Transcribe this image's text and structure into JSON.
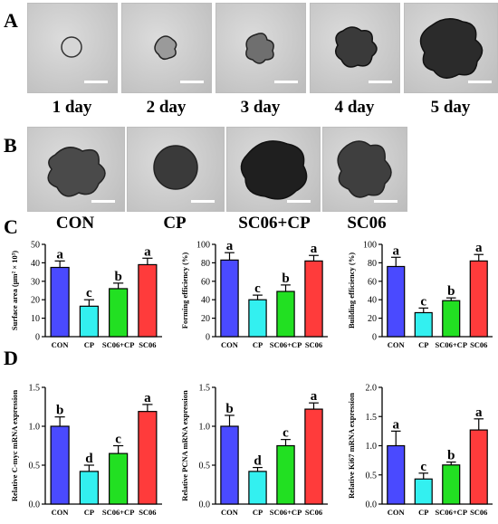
{
  "panels": {
    "A": "A",
    "B": "B",
    "C": "C",
    "D": "D"
  },
  "row_a": {
    "day_labels": [
      "1 day",
      "2 day",
      "3 day",
      "4 day",
      "5 day"
    ]
  },
  "row_b": {
    "group_labels": [
      "CON",
      "CP",
      "SC06+CP",
      "SC06"
    ]
  },
  "colors": {
    "CON": "#4a4aff",
    "CP": "#33f0f0",
    "SC06+CP": "#22e022",
    "SC06": "#ff3b3b"
  },
  "chart_data": [
    {
      "type": "bar",
      "panel": "C",
      "categories": [
        "CON",
        "CP",
        "SC06+CP",
        "SC06"
      ],
      "values": [
        37.5,
        16.5,
        26,
        39
      ],
      "errors": [
        3.5,
        3.5,
        3,
        3.5
      ],
      "letters": [
        "a",
        "c",
        "b",
        "a"
      ],
      "ylabel": "Surface area (μm² × 10³)",
      "ylim": [
        0,
        50
      ],
      "yticks": [
        "0",
        "10",
        "20",
        "30",
        "40",
        "50"
      ]
    },
    {
      "type": "bar",
      "panel": "C",
      "categories": [
        "CON",
        "CP",
        "SC06+CP",
        "SC06"
      ],
      "values": [
        83,
        40,
        49,
        82
      ],
      "errors": [
        8,
        5,
        7,
        6
      ],
      "letters": [
        "a",
        "c",
        "b",
        "a"
      ],
      "ylabel": "Forming efficiency (%)",
      "ylim": [
        0,
        100
      ],
      "yticks": [
        "0",
        "20",
        "40",
        "60",
        "80",
        "100"
      ]
    },
    {
      "type": "bar",
      "panel": "C",
      "categories": [
        "CON",
        "CP",
        "SC06+CP",
        "SC06"
      ],
      "values": [
        76,
        26,
        39,
        82
      ],
      "errors": [
        10,
        5,
        3,
        7
      ],
      "letters": [
        "a",
        "c",
        "b",
        "a"
      ],
      "ylabel": "Building efficiency (%)",
      "ylim": [
        0,
        100
      ],
      "yticks": [
        "0",
        "20",
        "40",
        "60",
        "80",
        "100"
      ]
    },
    {
      "type": "bar",
      "panel": "D",
      "categories": [
        "CON",
        "CP",
        "SC06+CP",
        "SC06"
      ],
      "values": [
        1.0,
        0.42,
        0.65,
        1.19
      ],
      "errors": [
        0.12,
        0.08,
        0.1,
        0.09
      ],
      "letters": [
        "b",
        "d",
        "c",
        "a"
      ],
      "ylabel": "Relative C-myc mRNA expression",
      "ylim": [
        0,
        1.5
      ],
      "yticks": [
        "0.0",
        "0.5",
        "1.0",
        "1.5"
      ]
    },
    {
      "type": "bar",
      "panel": "D",
      "categories": [
        "CON",
        "CP",
        "SC06+CP",
        "SC06"
      ],
      "values": [
        1.0,
        0.42,
        0.75,
        1.22
      ],
      "errors": [
        0.14,
        0.05,
        0.08,
        0.08
      ],
      "letters": [
        "b",
        "d",
        "c",
        "a"
      ],
      "ylabel": "Relative PCNA mRNA expression",
      "ylim": [
        0,
        1.5
      ],
      "yticks": [
        "0.0",
        "0.5",
        "1.0",
        "1.5"
      ]
    },
    {
      "type": "bar",
      "panel": "D",
      "categories": [
        "CON",
        "CP",
        "SC06+CP",
        "SC06"
      ],
      "values": [
        1.0,
        0.43,
        0.67,
        1.27
      ],
      "errors": [
        0.25,
        0.1,
        0.05,
        0.19
      ],
      "letters": [
        "a",
        "c",
        "b",
        "a"
      ],
      "ylabel": "Relative Ki67 mRNA expression",
      "ylim": [
        0,
        2.0
      ],
      "yticks": [
        "0.0",
        "0.5",
        "1.0",
        "1.5",
        "2.0"
      ]
    }
  ]
}
